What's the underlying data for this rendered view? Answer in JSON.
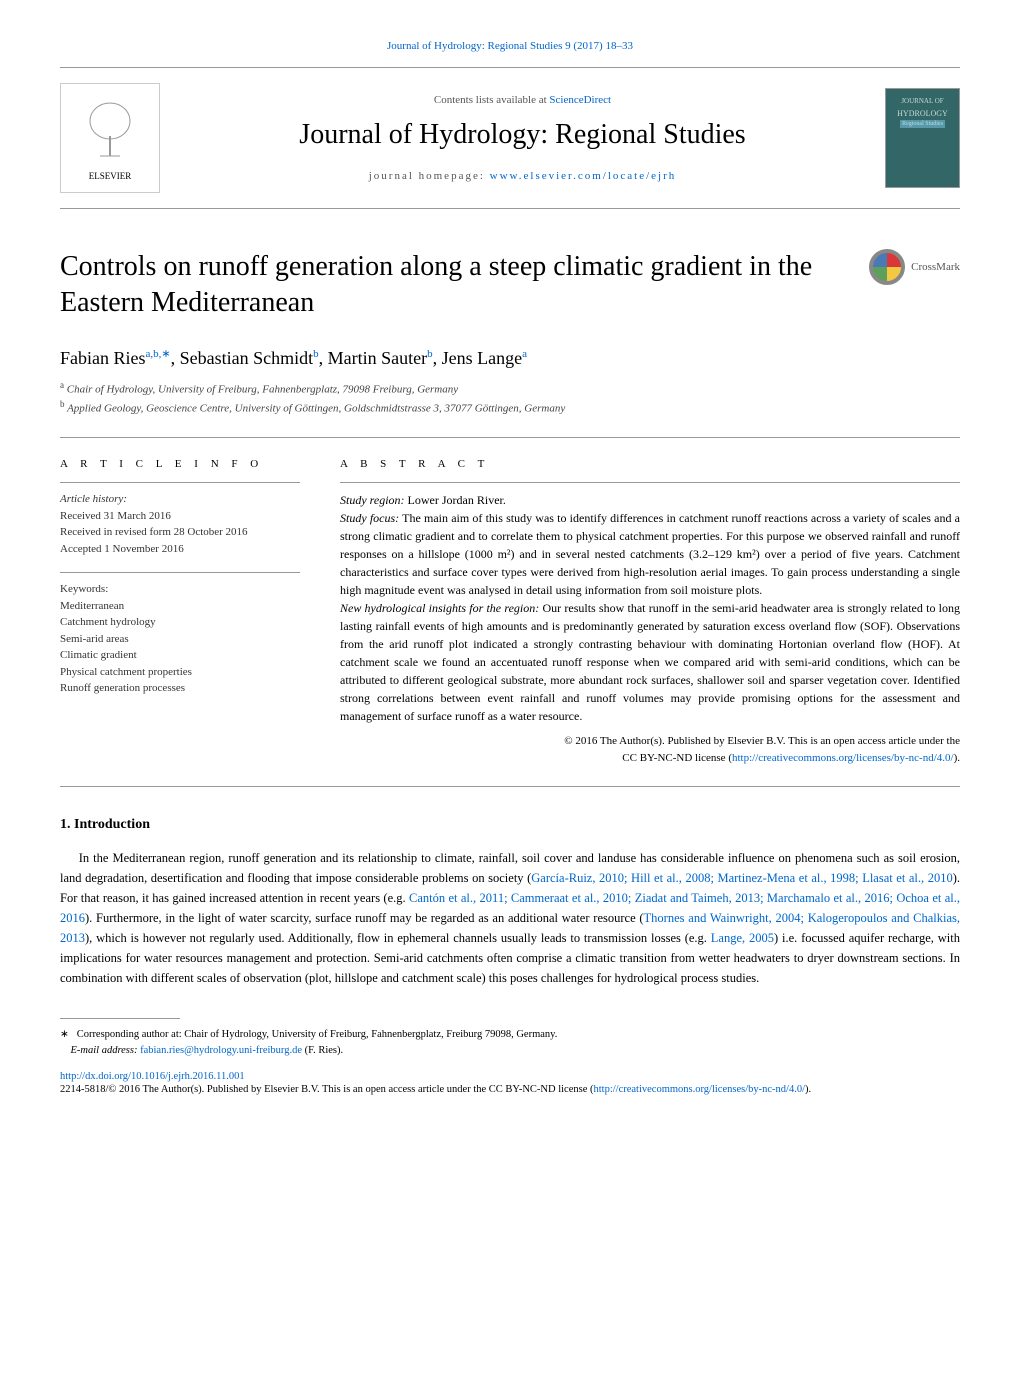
{
  "top_link": "Journal of Hydrology: Regional Studies 9 (2017) 18–33",
  "header": {
    "contents_prefix": "Contents lists available at ",
    "contents_link": "ScienceDirect",
    "journal_name": "Journal of Hydrology: Regional Studies",
    "homepage_prefix": "journal homepage: ",
    "homepage_url": "www.elsevier.com/locate/ejrh",
    "elsevier_label": "ELSEVIER",
    "cover_text": "HYDROLOGY"
  },
  "title": "Controls on runoff generation along a steep climatic gradient in the Eastern Mediterranean",
  "crossmark_label": "CrossMark",
  "authors_html": "Fabian Ries",
  "authors": [
    {
      "name": "Fabian Ries",
      "sup": "a,b,∗"
    },
    {
      "name": "Sebastian Schmidt",
      "sup": "b"
    },
    {
      "name": "Martin Sauter",
      "sup": "b"
    },
    {
      "name": "Jens Lange",
      "sup": "a"
    }
  ],
  "affiliations": [
    {
      "sup": "a",
      "text": "Chair of Hydrology, University of Freiburg, Fahnenbergplatz, 79098 Freiburg, Germany"
    },
    {
      "sup": "b",
      "text": "Applied Geology, Geoscience Centre, University of Göttingen, Goldschmidtstrasse 3, 37077 Göttingen, Germany"
    }
  ],
  "article_info": {
    "heading": "A R T I C L E   I N F O",
    "history_label": "Article history:",
    "history": [
      "Received 31 March 2016",
      "Received in revised form 28 October 2016",
      "Accepted 1 November 2016"
    ],
    "keywords_label": "Keywords:",
    "keywords": [
      "Mediterranean",
      "Catchment hydrology",
      "Semi-arid areas",
      "Climatic gradient",
      "Physical catchment properties",
      "Runoff generation processes"
    ]
  },
  "abstract": {
    "heading": "A B S T R A C T",
    "region_label": "Study region:",
    "region": "Lower Jordan River.",
    "focus_label": "Study focus:",
    "focus": "The main aim of this study was to identify differences in catchment runoff reactions across a variety of scales and a strong climatic gradient and to correlate them to physical catchment properties. For this purpose we observed rainfall and runoff responses on a hillslope (1000 m²) and in several nested catchments (3.2–129 km²) over a period of five years. Catchment characteristics and surface cover types were derived from high-resolution aerial images. To gain process understanding a single high magnitude event was analysed in detail using information from soil moisture plots.",
    "insights_label": "New hydrological insights for the region:",
    "insights": "Our results show that runoff in the semi-arid headwater area is strongly related to long lasting rainfall events of high amounts and is predominantly generated by saturation excess overland flow (SOF). Observations from the arid runoff plot indicated a strongly contrasting behaviour with dominating Hortonian overland flow (HOF). At catchment scale we found an accentuated runoff response when we compared arid with semi-arid conditions, which can be attributed to different geological substrate, more abundant rock surfaces, shallower soil and sparser vegetation cover. Identified strong correlations between event rainfall and runoff volumes may provide promising options for the assessment and management of surface runoff as a water resource."
  },
  "copyright": {
    "line1": "© 2016 The Author(s). Published by Elsevier B.V. This is an open access article under the",
    "line2_prefix": "CC BY-NC-ND license (",
    "license_url": "http://creativecommons.org/licenses/by-nc-nd/4.0/",
    "line2_suffix": ")."
  },
  "section1": {
    "heading": "1. Introduction",
    "para": "In the Mediterranean region, runoff generation and its relationship to climate, rainfall, soil cover and landuse has considerable influence on phenomena such as soil erosion, land degradation, desertification and flooding that impose considerable problems on society (",
    "cite1": "García-Ruiz, 2010; Hill et al., 2008; Martinez-Mena et al., 1998; Llasat et al., 2010",
    "para2": "). For that reason, it has gained increased attention in recent years (e.g. ",
    "cite2": "Cantón et al., 2011; Cammeraat et al., 2010; Ziadat and Taimeh, 2013; Marchamalo et al., 2016; Ochoa et al., 2016",
    "para3": "). Furthermore, in the light of water scarcity, surface runoff may be regarded as an additional water resource (",
    "cite3": "Thornes and Wainwright, 2004; Kalogeropoulos and Chalkias, 2013",
    "para4": "), which is however not regularly used. Additionally, flow in ephemeral channels usually leads to transmission losses (e.g. ",
    "cite4": "Lange, 2005",
    "para5": ") i.e. focussed aquifer recharge, with implications for water resources management and protection. Semi-arid catchments often comprise a climatic transition from wetter headwaters to dryer downstream sections. In combination with different scales of observation (plot, hillslope and catchment scale) this poses challenges for hydrological process studies."
  },
  "footnote": {
    "corr_marker": "∗",
    "corr_text": "Corresponding author at: Chair of Hydrology, University of Freiburg, Fahnenbergplatz, Freiburg 79098, Germany.",
    "email_label": "E-mail address:",
    "email": "fabian.ries@hydrology.uni-freiburg.de",
    "email_name": "(F. Ries)."
  },
  "doi": {
    "url": "http://dx.doi.org/10.1016/j.ejrh.2016.11.001"
  },
  "bottom": {
    "text1": "2214-5818/© 2016 The Author(s). Published by Elsevier B.V. This is an open access article under the CC BY-NC-ND license (",
    "url": "http://creativecommons.org/licenses/by-nc-nd/4.0/",
    "text2": ")."
  },
  "colors": {
    "link": "#0066cc",
    "text": "#000000",
    "muted": "#555555",
    "border": "#999999",
    "cover_bg": "#336666"
  }
}
